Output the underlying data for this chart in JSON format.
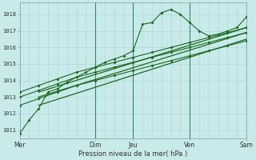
{
  "title": "",
  "xlabel": "Pression niveau de la mer( hPa )",
  "bg_color": "#c8eaea",
  "grid_color": "#b0d8d8",
  "line_color": "#1a6b1a",
  "xlim": [
    0,
    6.0
  ],
  "ylim": [
    1010.5,
    1018.7
  ],
  "yticks": [
    1011,
    1012,
    1013,
    1014,
    1015,
    1016,
    1017,
    1018
  ],
  "xtick_labels": [
    "Mer",
    "Dim",
    "Jeu",
    "Ven",
    "Sam"
  ],
  "xtick_pos": [
    0,
    2.0,
    3.0,
    4.5,
    6.0
  ],
  "vlines_dark": [
    2.0,
    3.0,
    4.5,
    6.0
  ],
  "series1_x": [
    0,
    0.25,
    0.5,
    0.75,
    1.0,
    1.25,
    1.5,
    1.75,
    2.0,
    2.25,
    2.5,
    2.75,
    3.0,
    3.25,
    3.5,
    3.75,
    4.0,
    4.25,
    4.5,
    4.75,
    5.0,
    5.25,
    5.5,
    5.75,
    6.0
  ],
  "series1_y": [
    1010.8,
    1011.6,
    1012.3,
    1013.3,
    1013.5,
    1013.9,
    1014.2,
    1014.5,
    1014.8,
    1015.1,
    1015.3,
    1015.5,
    1015.8,
    1017.4,
    1017.5,
    1018.1,
    1018.3,
    1018.0,
    1017.5,
    1017.0,
    1016.7,
    1016.8,
    1017.0,
    1017.2,
    1017.85
  ],
  "series2_x": [
    0,
    0.5,
    1.0,
    1.5,
    2.0,
    2.5,
    3.0,
    3.5,
    4.0,
    4.5,
    5.0,
    5.5,
    6.0
  ],
  "series2_y": [
    1013.3,
    1013.7,
    1014.1,
    1014.5,
    1014.8,
    1015.1,
    1015.4,
    1015.7,
    1016.0,
    1016.3,
    1016.6,
    1016.9,
    1017.2
  ],
  "series3_x": [
    0,
    0.5,
    1.0,
    1.5,
    2.0,
    2.5,
    3.0,
    3.5,
    4.0,
    4.5,
    5.0,
    5.5,
    6.0
  ],
  "series3_y": [
    1013.0,
    1013.4,
    1013.8,
    1014.2,
    1014.5,
    1014.8,
    1015.1,
    1015.4,
    1015.7,
    1016.0,
    1016.3,
    1016.6,
    1016.9
  ],
  "series4_x": [
    0,
    0.5,
    1.0,
    1.5,
    2.0,
    2.5,
    3.0,
    3.5,
    4.0,
    4.5,
    5.0,
    5.5,
    6.0
  ],
  "series4_y": [
    1012.5,
    1012.9,
    1013.3,
    1013.7,
    1014.0,
    1014.3,
    1014.6,
    1014.9,
    1015.2,
    1015.5,
    1015.8,
    1016.1,
    1016.4
  ],
  "trend1_x": [
    0.5,
    6.0
  ],
  "trend1_y": [
    1013.3,
    1017.2
  ],
  "trend2_x": [
    0.5,
    6.0
  ],
  "trend2_y": [
    1013.0,
    1016.9
  ],
  "trend3_x": [
    0.5,
    6.0
  ],
  "trend3_y": [
    1012.5,
    1016.5
  ]
}
